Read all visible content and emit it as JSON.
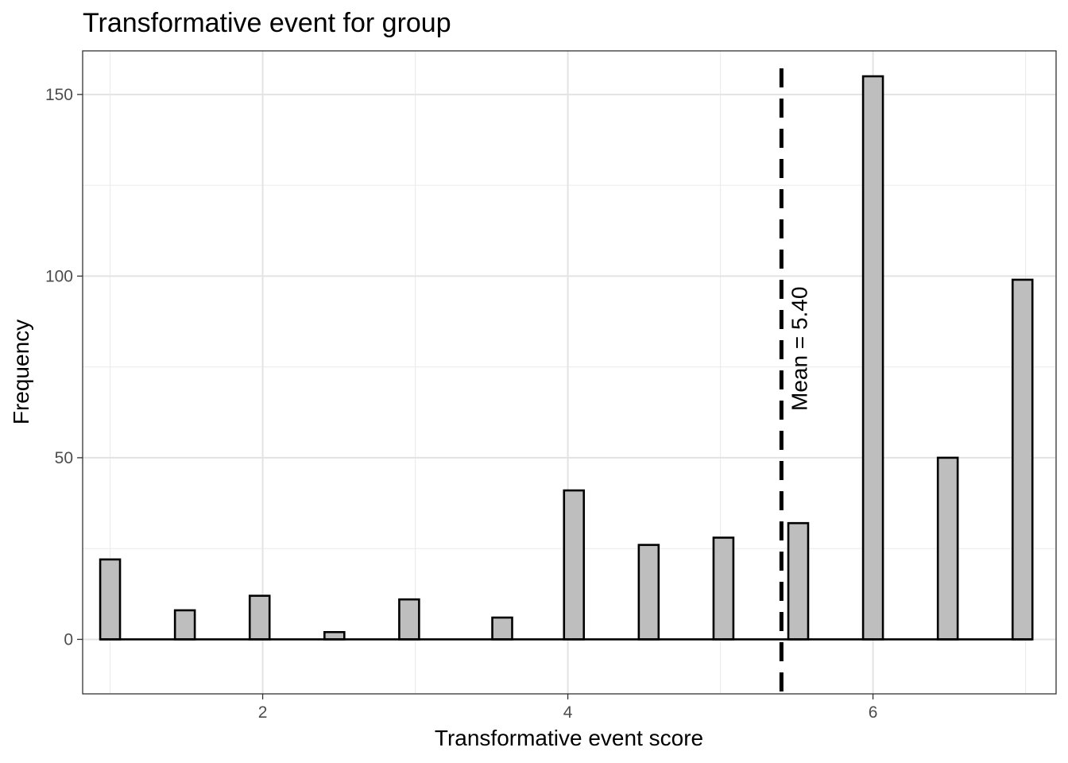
{
  "chart_data": {
    "type": "bar",
    "title": "Transformative event for group",
    "xlabel": "Transformative event score",
    "ylabel": "Frequency",
    "xlim": [
      0.82,
      7.2
    ],
    "ylim": [
      -15,
      162
    ],
    "x_ticks": [
      2,
      4,
      6
    ],
    "y_ticks": [
      0,
      50,
      100,
      150
    ],
    "x_minor_ticks": [
      1,
      3,
      5,
      7
    ],
    "y_minor_ticks": [
      25,
      75,
      125
    ],
    "bar_width": 0.13,
    "x": [
      1.0,
      1.49,
      1.98,
      2.47,
      2.96,
      3.57,
      4.04,
      4.53,
      5.02,
      5.51,
      6.0,
      6.49,
      6.98
    ],
    "values": [
      22,
      8,
      12,
      2,
      11,
      6,
      41,
      26,
      28,
      32,
      155,
      50,
      99
    ],
    "bar_fill": "#bebebe",
    "bar_stroke": "#000000",
    "grid": true,
    "mean": 5.4,
    "mean_label": "Mean = 5.40"
  }
}
